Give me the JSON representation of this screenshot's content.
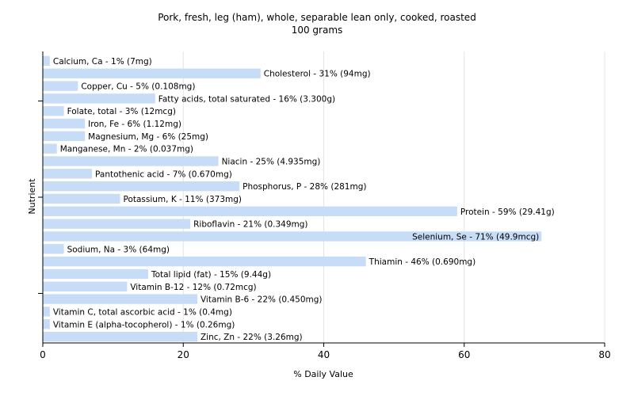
{
  "chart_data": {
    "type": "bar",
    "orientation": "horizontal",
    "title": "Pork, fresh, leg (ham), whole, separable lean only, cooked, roasted",
    "subtitle": "100 grams",
    "xlabel": "% Daily Value",
    "ylabel": "Nutrient",
    "xlim": [
      0,
      80
    ],
    "xticks": [
      "0",
      "20",
      "40",
      "60",
      "80"
    ],
    "grid": true,
    "bar_color": "#c6dcf7",
    "categories": [
      "Calcium, Ca",
      "Cholesterol",
      "Copper, Cu",
      "Fatty acids, total saturated",
      "Folate, total",
      "Iron, Fe",
      "Magnesium, Mg",
      "Manganese, Mn",
      "Niacin",
      "Pantothenic acid",
      "Phosphorus, P",
      "Potassium, K",
      "Protein",
      "Riboflavin",
      "Selenium, Se",
      "Sodium, Na",
      "Thiamin",
      "Total lipid (fat)",
      "Vitamin B-12",
      "Vitamin B-6",
      "Vitamin C, total ascorbic acid",
      "Vitamin E (alpha-tocopherol)",
      "Zinc, Zn"
    ],
    "values": [
      1,
      31,
      5,
      16,
      3,
      6,
      6,
      2,
      25,
      7,
      28,
      11,
      59,
      21,
      71,
      3,
      46,
      15,
      12,
      22,
      1,
      1,
      22
    ],
    "labels": [
      "Calcium, Ca - 1% (7mg)",
      "Cholesterol - 31% (94mg)",
      "Copper, Cu - 5% (0.108mg)",
      "Fatty acids, total saturated - 16% (3.300g)",
      "Folate, total - 3% (12mcg)",
      "Iron, Fe - 6% (1.12mg)",
      "Magnesium, Mg - 6% (25mg)",
      "Manganese, Mn - 2% (0.037mg)",
      "Niacin - 25% (4.935mg)",
      "Pantothenic acid - 7% (0.670mg)",
      "Phosphorus, P - 28% (281mg)",
      "Potassium, K - 11% (373mg)",
      "Protein - 59% (29.41g)",
      "Riboflavin - 21% (0.349mg)",
      "Selenium, Se - 71% (49.9mcg)",
      "Sodium, Na - 3% (64mg)",
      "Thiamin - 46% (0.690mg)",
      "Total lipid (fat) - 15% (9.44g)",
      "Vitamin B-12 - 12% (0.72mcg)",
      "Vitamin B-6 - 22% (0.450mg)",
      "Vitamin C, total ascorbic acid - 1% (0.4mg)",
      "Vitamin E (alpha-tocopherol) - 1% (0.26mg)",
      "Zinc, Zn - 22% (3.26mg)"
    ]
  }
}
